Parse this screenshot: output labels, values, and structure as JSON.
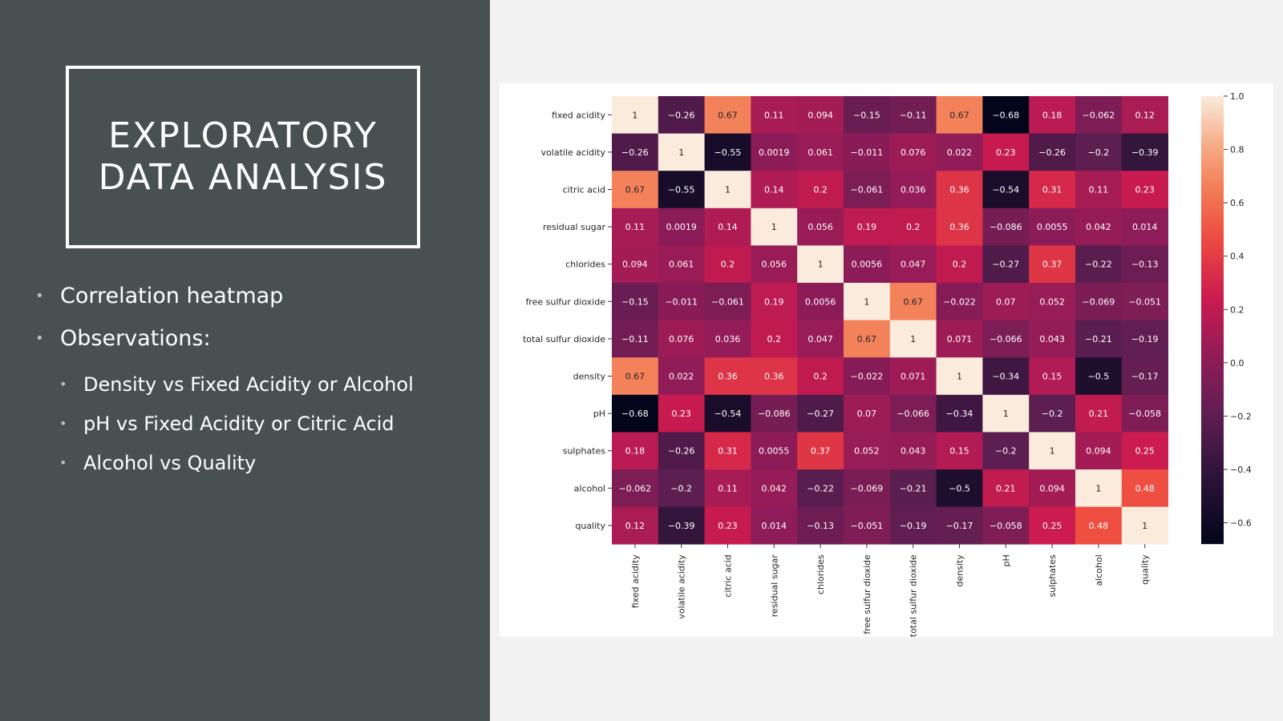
{
  "slide": {
    "title_lines": [
      "EXPLORATORY",
      "DATA ANALYSIS"
    ],
    "bullets": [
      "Correlation heatmap",
      "Observations:"
    ],
    "sub_bullets": [
      "Density vs Fixed Acidity or Alcohol",
      "pH vs Fixed Acidity or Citric Acid",
      "Alcohol vs Quality"
    ],
    "colors": {
      "panel": "#495051",
      "text": "#ffffff",
      "background": "#f2f2f2"
    }
  },
  "chart_data": {
    "type": "heatmap",
    "title": "",
    "rows": [
      "fixed acidity",
      "volatile acidity",
      "citric acid",
      "residual sugar",
      "chlorides",
      "free sulfur dioxide",
      "total sulfur dioxide",
      "density",
      "pH",
      "sulphates",
      "alcohol",
      "quality"
    ],
    "columns": [
      "fixed acidity",
      "volatile acidity",
      "citric acid",
      "residual sugar",
      "chlorides",
      "free sulfur dioxide",
      "total sulfur dioxide",
      "density",
      "pH",
      "sulphates",
      "alcohol",
      "quality"
    ],
    "values": [
      [
        1,
        -0.26,
        0.67,
        0.11,
        0.094,
        -0.15,
        -0.11,
        0.67,
        -0.68,
        0.18,
        -0.062,
        0.12
      ],
      [
        -0.26,
        1,
        -0.55,
        0.0019,
        0.061,
        -0.011,
        0.076,
        0.022,
        0.23,
        -0.26,
        -0.2,
        -0.39
      ],
      [
        0.67,
        -0.55,
        1,
        0.14,
        0.2,
        -0.061,
        0.036,
        0.36,
        -0.54,
        0.31,
        0.11,
        0.23
      ],
      [
        0.11,
        0.0019,
        0.14,
        1,
        0.056,
        0.19,
        0.2,
        0.36,
        -0.086,
        0.0055,
        0.042,
        0.014
      ],
      [
        0.094,
        0.061,
        0.2,
        0.056,
        1,
        0.0056,
        0.047,
        0.2,
        -0.27,
        0.37,
        -0.22,
        -0.13
      ],
      [
        -0.15,
        -0.011,
        -0.061,
        0.19,
        0.0056,
        1,
        0.67,
        -0.022,
        0.07,
        0.052,
        -0.069,
        -0.051
      ],
      [
        -0.11,
        0.076,
        0.036,
        0.2,
        0.047,
        0.67,
        1,
        0.071,
        -0.066,
        0.043,
        -0.21,
        -0.19
      ],
      [
        0.67,
        0.022,
        0.36,
        0.36,
        0.2,
        -0.022,
        0.071,
        1,
        -0.34,
        0.15,
        -0.5,
        -0.17
      ],
      [
        -0.68,
        0.23,
        -0.54,
        -0.086,
        -0.27,
        0.07,
        -0.066,
        -0.34,
        1,
        -0.2,
        0.21,
        -0.058
      ],
      [
        0.18,
        -0.26,
        0.31,
        0.0055,
        0.37,
        0.052,
        0.043,
        0.15,
        -0.2,
        1,
        0.094,
        0.25
      ],
      [
        -0.062,
        -0.2,
        0.11,
        0.042,
        -0.22,
        -0.069,
        -0.21,
        -0.5,
        0.21,
        0.094,
        1,
        0.48
      ],
      [
        0.12,
        -0.39,
        0.23,
        0.014,
        -0.13,
        -0.051,
        -0.19,
        -0.17,
        -0.058,
        0.25,
        0.48,
        1
      ]
    ],
    "colorbar": {
      "range": [
        -0.68,
        1.0
      ],
      "ticks": [
        1.0,
        0.8,
        0.6,
        0.4,
        0.2,
        0.0,
        -0.2,
        -0.4,
        -0.6
      ],
      "tick_labels": [
        "1.0",
        "0.8",
        "0.6",
        "0.4",
        "0.2",
        "0.0",
        "−0.2",
        "−0.4",
        "−0.6"
      ]
    },
    "colormap": "rocket",
    "annotations": true
  }
}
